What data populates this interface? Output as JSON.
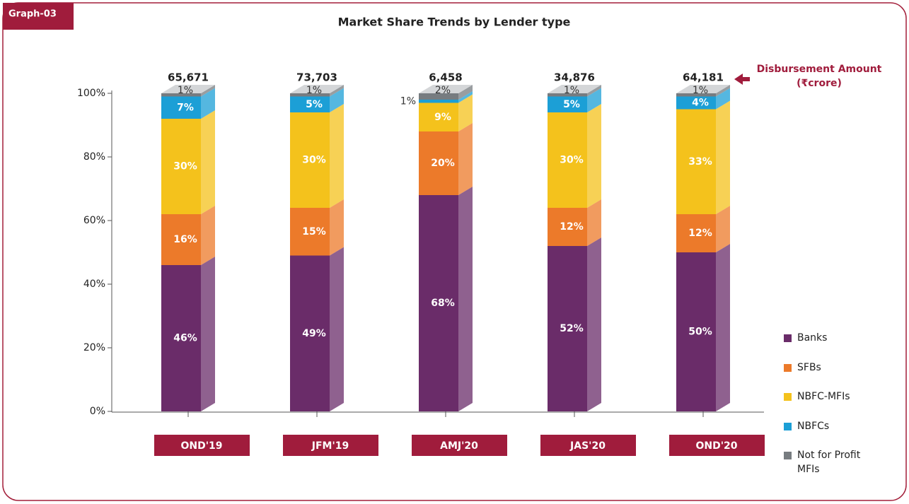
{
  "badge": "Graph-03",
  "chart_data": {
    "type": "stacked_bar",
    "title": "Market Share Trends by Lender type",
    "annotation": "Disbursement Amount",
    "annotation_unit": "(₹crore)",
    "categories": [
      "OND'19",
      "JFM'19",
      "AMJ'20",
      "JAS'20",
      "OND'20"
    ],
    "totals": {
      "values": [
        65671,
        73703,
        6458,
        34876,
        64181
      ],
      "value_labels": [
        "65,671",
        "73,703",
        "6,458",
        "34,876",
        "64,181"
      ]
    },
    "series": [
      {
        "name": "Banks",
        "color": "#6a2c69",
        "values": [
          46,
          49,
          68,
          52,
          50
        ],
        "value_labels": [
          "46%",
          "49%",
          "68%",
          "52%",
          "50%"
        ]
      },
      {
        "name": "SFBs",
        "color": "#ec7a2a",
        "values": [
          16,
          15,
          20,
          12,
          12
        ],
        "value_labels": [
          "16%",
          "15%",
          "20%",
          "12%",
          "12%"
        ]
      },
      {
        "name": "NBFC-MFIs",
        "color": "#f4c21c",
        "values": [
          30,
          30,
          9,
          30,
          33
        ],
        "value_labels": [
          "30%",
          "30%",
          "9%",
          "30%",
          "33%"
        ]
      },
      {
        "name": "NBFCs",
        "color": "#1c9fd6",
        "values": [
          7,
          5,
          1,
          5,
          4
        ],
        "value_labels": [
          "7%",
          "5%",
          "1%",
          "5%",
          "4%"
        ]
      },
      {
        "name": "Not for Profit MFIs",
        "color": "#777c80",
        "values": [
          1,
          1,
          2,
          1,
          1
        ],
        "value_labels": [
          "1%",
          "1%",
          "2%",
          "1%",
          "1%"
        ]
      }
    ],
    "ylim": [
      0,
      100
    ],
    "yticks": [
      {
        "value": 0,
        "label": "0%"
      },
      {
        "value": 20,
        "label": "20%"
      },
      {
        "value": 40,
        "label": "40%"
      },
      {
        "value": 60,
        "label": "60%"
      },
      {
        "value": 80,
        "label": "80%"
      },
      {
        "value": 100,
        "label": "100%"
      }
    ],
    "legend": "right"
  }
}
